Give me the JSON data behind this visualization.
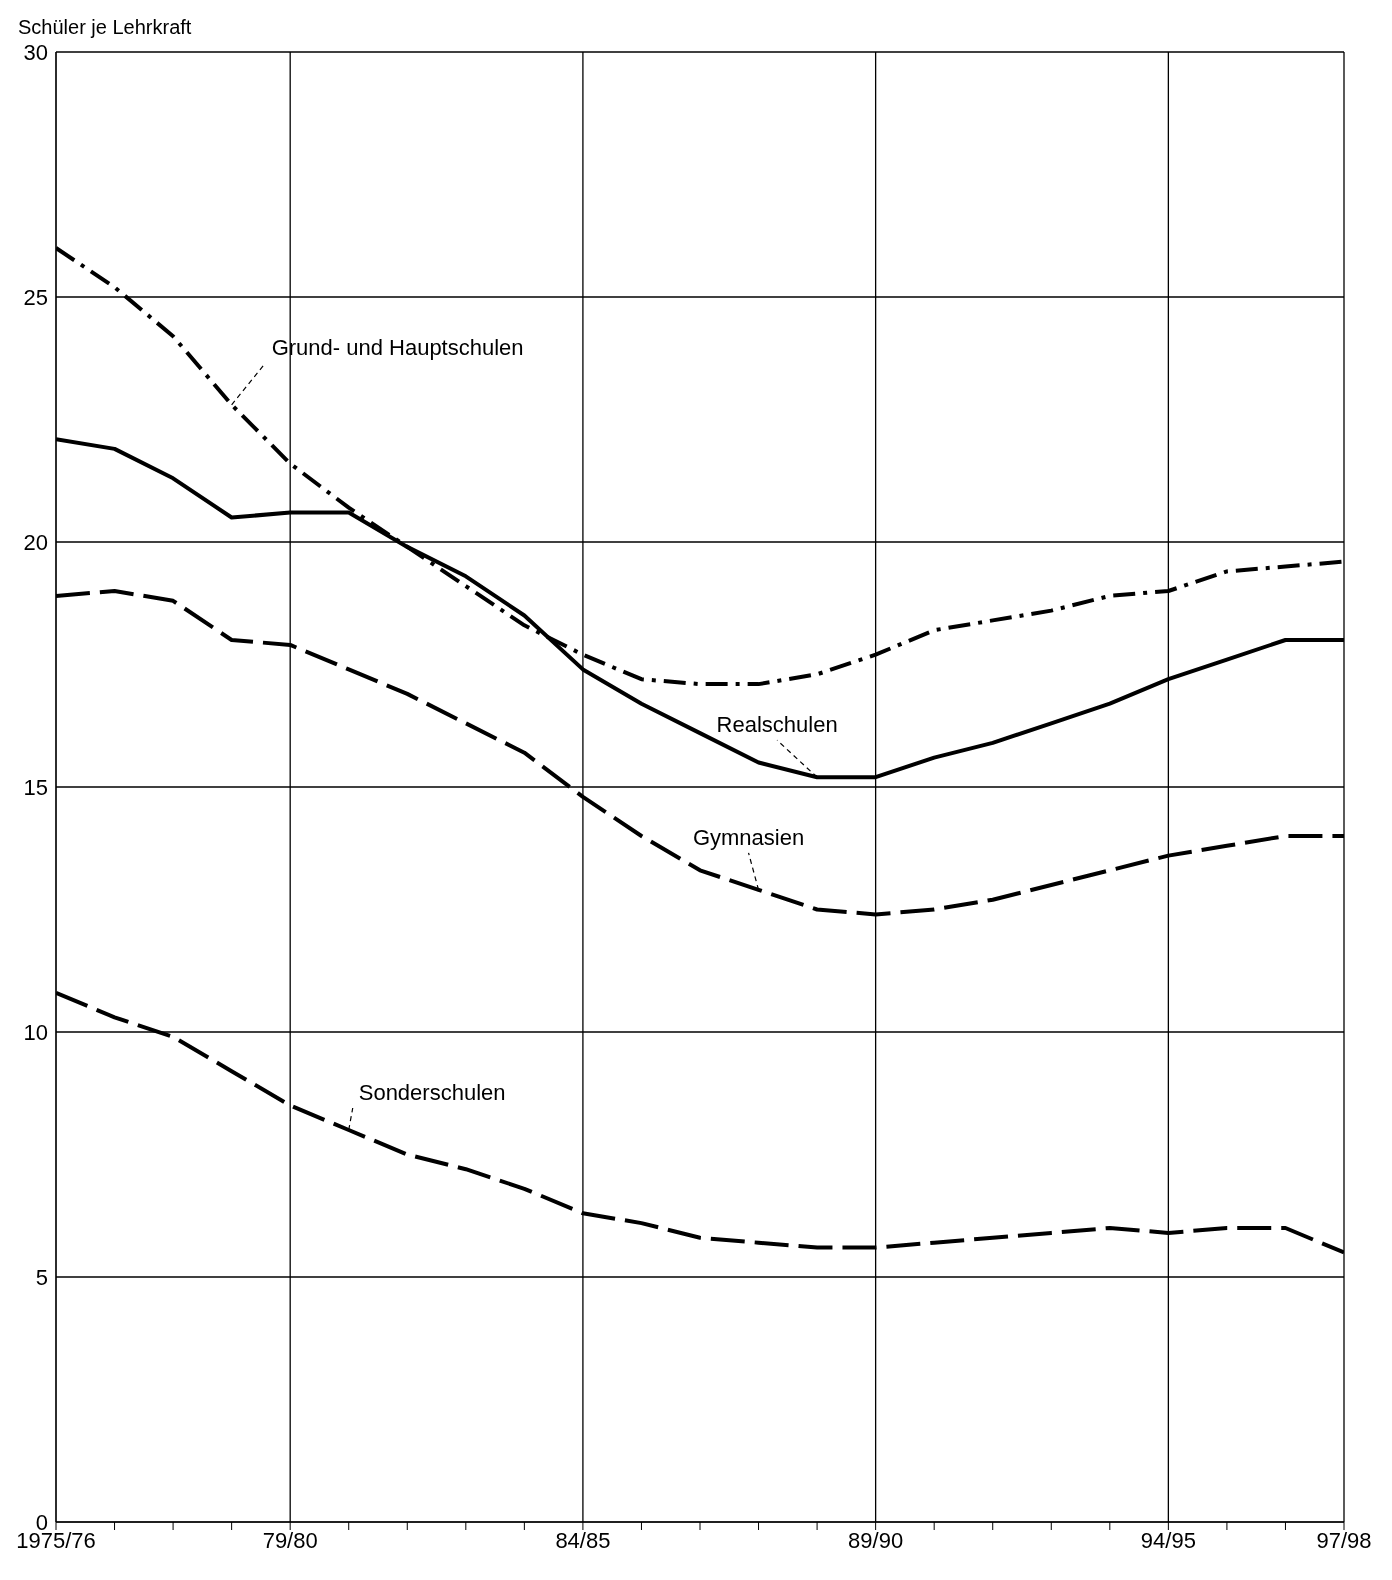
{
  "chart_data": {
    "type": "line",
    "ylabel": "Schüler je Lehrkraft",
    "categories": [
      "1975/76",
      null,
      null,
      null,
      "79/80",
      null,
      null,
      null,
      null,
      "84/85",
      null,
      null,
      null,
      null,
      "89/90",
      null,
      null,
      null,
      null,
      "94/95",
      null,
      null,
      "97/98"
    ],
    "series": [
      {
        "name": "Grund- und Hauptschulen",
        "color": "#000000",
        "line_style": "dashdot",
        "values": [
          26.0,
          25.2,
          24.2,
          22.8,
          21.6,
          20.7,
          19.9,
          19.1,
          18.3,
          17.7,
          17.2,
          17.1,
          17.1,
          17.3,
          17.7,
          18.2,
          18.4,
          18.6,
          18.9,
          19.0,
          19.4,
          19.5,
          19.6
        ]
      },
      {
        "name": "Realschulen",
        "color": "#000000",
        "line_style": "solid",
        "values": [
          22.1,
          21.9,
          21.3,
          20.5,
          20.6,
          20.6,
          19.9,
          19.3,
          18.5,
          17.4,
          16.7,
          16.1,
          15.5,
          15.2,
          15.2,
          15.6,
          15.9,
          16.3,
          16.7,
          17.2,
          17.6,
          18.0,
          18.0
        ]
      },
      {
        "name": "Gymnasien",
        "color": "#000000",
        "line_style": "dashed",
        "values": [
          18.9,
          19.0,
          18.8,
          18.0,
          17.9,
          17.4,
          16.9,
          16.3,
          15.7,
          14.8,
          14.0,
          13.3,
          12.9,
          12.5,
          12.4,
          12.5,
          12.7,
          13.0,
          13.3,
          13.6,
          13.8,
          14.0,
          14.0
        ]
      },
      {
        "name": "Sonderschulen",
        "color": "#000000",
        "line_style": "dashed",
        "values": [
          10.8,
          10.3,
          9.9,
          9.2,
          8.5,
          8.0,
          7.5,
          7.2,
          6.8,
          6.3,
          6.1,
          5.8,
          5.7,
          5.6,
          5.6,
          5.7,
          5.8,
          5.9,
          6.0,
          5.9,
          6.0,
          6.0,
          5.5
        ]
      }
    ],
    "ylim": [
      0,
      30
    ],
    "yticks": [
      0,
      5,
      10,
      15,
      20,
      25,
      30
    ],
    "grid": true,
    "marker": "none"
  }
}
